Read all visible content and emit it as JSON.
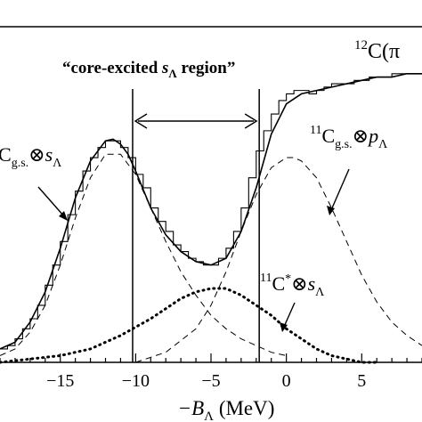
{
  "chart_data": {
    "type": "line",
    "xlabel": "−B",
    "xlabel_subscript": "Λ",
    "xlabel_unit": " (MeV)",
    "xlim": [
      -19,
      9
    ],
    "ylim": [
      0,
      1
    ],
    "x_ticks": [
      -15,
      -10,
      -5,
      0,
      5
    ],
    "x_tick_labels": [
      "−15",
      "−10",
      "−5",
      "0",
      "5"
    ],
    "header_label": {
      "superscript": "12",
      "text": "C(π"
    },
    "region_label": {
      "prefix": "“core-excited ",
      "symbol": "s",
      "subscript": "Λ",
      "suffix": " region”"
    },
    "region_bounds": [
      -10.2,
      -1.8
    ],
    "annotations": [
      {
        "name": "gs-s-lambda",
        "prefix_sup": "",
        "base": "C",
        "sub": "g.s.",
        "op": "⊗",
        "sym": "s",
        "sym_sub": "Λ"
      },
      {
        "name": "gs-p-lambda",
        "prefix_sup": "11",
        "base": "C",
        "sub": "g.s.",
        "op": "⊗",
        "sym": "p",
        "sym_sub": "Λ"
      },
      {
        "name": "excited-s-lambda",
        "prefix_sup": "11",
        "base": "C",
        "sup": "*",
        "op": "⊗",
        "sym": "s",
        "sym_sub": "Λ"
      }
    ],
    "series": [
      {
        "style": "histogram",
        "x": [
          -19,
          -18.5,
          -18,
          -17.5,
          -17,
          -16.5,
          -16,
          -15.5,
          -15,
          -14.5,
          -14,
          -13.5,
          -13,
          -12.5,
          -12,
          -11.5,
          -11,
          -10.5,
          -10,
          -9.5,
          -9,
          -8.5,
          -8,
          -7.5,
          -7,
          -6.5,
          -6,
          -5.5,
          -5,
          -4.5,
          -4,
          -3.5,
          -3,
          -2.5,
          -2,
          -1.5,
          -1,
          -0.5,
          0,
          0.5,
          1,
          1.5,
          2,
          2.5,
          3,
          3.5,
          4,
          4.5,
          5,
          5.5,
          6,
          6.5,
          7,
          7.5,
          8,
          8.5
        ],
        "y": [
          0.04,
          0.05,
          0.07,
          0.1,
          0.13,
          0.17,
          0.23,
          0.29,
          0.36,
          0.44,
          0.51,
          0.57,
          0.61,
          0.64,
          0.66,
          0.66,
          0.64,
          0.61,
          0.56,
          0.52,
          0.46,
          0.42,
          0.39,
          0.35,
          0.33,
          0.31,
          0.3,
          0.29,
          0.29,
          0.31,
          0.34,
          0.39,
          0.46,
          0.55,
          0.63,
          0.69,
          0.74,
          0.78,
          0.8,
          0.81,
          0.81,
          0.8,
          0.81,
          0.82,
          0.83,
          0.83,
          0.83,
          0.84,
          0.84,
          0.85,
          0.85,
          0.85,
          0.86,
          0.86,
          0.86,
          0.86
        ]
      },
      {
        "style": "solid",
        "x": [
          -19,
          -18,
          -17,
          -16,
          -15,
          -14,
          -13,
          -12,
          -11.5,
          -11,
          -10.5,
          -10,
          -9,
          -8,
          -7,
          -6,
          -5,
          -4,
          -3,
          -2,
          -1,
          0,
          1,
          2,
          3,
          4,
          5,
          6,
          7,
          8,
          9
        ],
        "y": [
          0.04,
          0.06,
          0.12,
          0.21,
          0.34,
          0.49,
          0.6,
          0.66,
          0.665,
          0.65,
          0.62,
          0.57,
          0.46,
          0.38,
          0.33,
          0.3,
          0.29,
          0.31,
          0.39,
          0.52,
          0.68,
          0.77,
          0.8,
          0.81,
          0.82,
          0.83,
          0.84,
          0.85,
          0.85,
          0.86,
          0.86
        ]
      },
      {
        "style": "dashed",
        "x": [
          -19,
          -18,
          -17,
          -16,
          -15,
          -14,
          -13,
          -12,
          -11,
          -10,
          -9,
          -8,
          -7,
          -6,
          -5,
          -4,
          -3,
          -2,
          -1,
          0
        ],
        "y": [
          0.02,
          0.04,
          0.09,
          0.17,
          0.29,
          0.43,
          0.55,
          0.62,
          0.62,
          0.56,
          0.46,
          0.36,
          0.27,
          0.2,
          0.14,
          0.1,
          0.07,
          0.05,
          0.03,
          0.02
        ]
      },
      {
        "style": "dashed",
        "x": [
          -10,
          -8,
          -6,
          -5,
          -4,
          -3,
          -2,
          -1,
          0,
          0.5,
          1,
          2,
          3,
          4,
          5,
          6,
          7,
          8,
          9
        ],
        "y": [
          0.0,
          0.03,
          0.1,
          0.17,
          0.27,
          0.39,
          0.5,
          0.58,
          0.61,
          0.61,
          0.6,
          0.55,
          0.46,
          0.36,
          0.26,
          0.18,
          0.12,
          0.08,
          0.05
        ]
      },
      {
        "style": "dotted",
        "x": [
          -19,
          -17,
          -15,
          -13,
          -11,
          -9,
          -7,
          -6,
          -5,
          -4,
          -3,
          -2,
          -1,
          0,
          1,
          2,
          3,
          4,
          5,
          6
        ],
        "y": [
          0.0,
          0.01,
          0.02,
          0.04,
          0.08,
          0.13,
          0.19,
          0.21,
          0.22,
          0.22,
          0.2,
          0.17,
          0.14,
          0.1,
          0.07,
          0.04,
          0.02,
          0.01,
          0.0,
          0.0
        ]
      }
    ]
  }
}
